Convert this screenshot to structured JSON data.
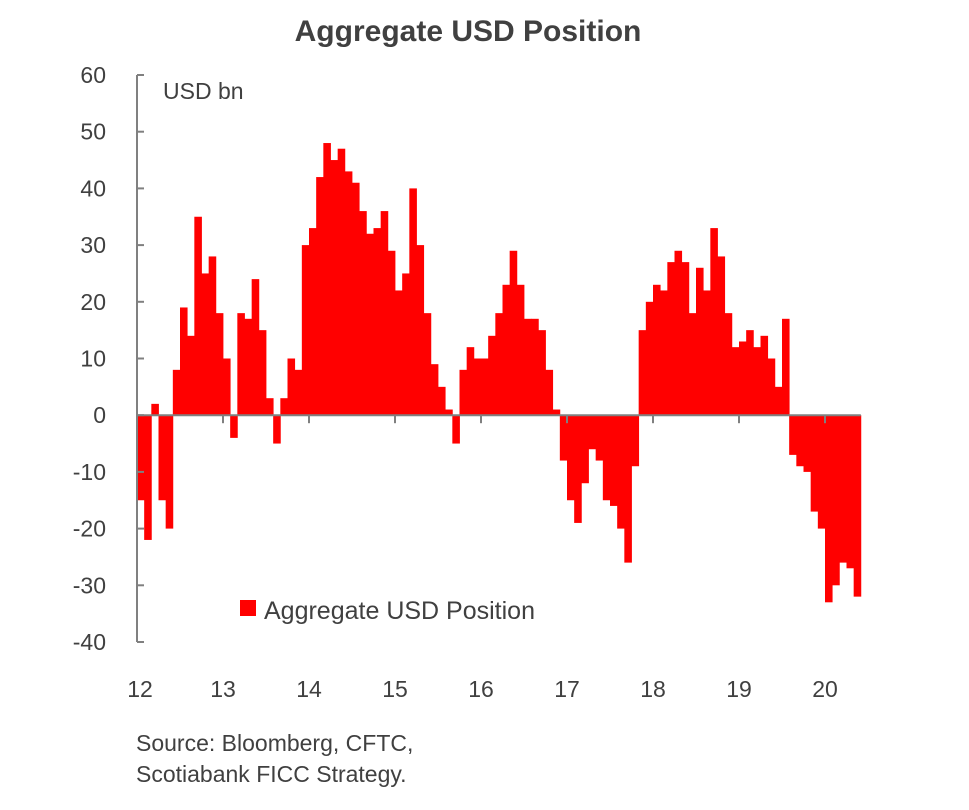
{
  "chart_data": {
    "type": "bar",
    "title": "Aggregate USD Position",
    "ylabel": "USD bn",
    "xlabel": "",
    "ylim": [
      -40,
      60
    ],
    "yticks": [
      "60",
      "50",
      "40",
      "30",
      "20",
      "10",
      "0",
      "-10",
      "-20",
      "-30",
      "-40"
    ],
    "xticks": [
      "12",
      "13",
      "14",
      "15",
      "16",
      "17",
      "18",
      "19",
      "20"
    ],
    "grid": false,
    "legend_position": "bottom-center",
    "colors": {
      "bar": "#FF0000",
      "axis": "#808080",
      "text": "#404040"
    },
    "x_start": "2012-01",
    "x_frequency": "monthly",
    "series": [
      {
        "name": "Aggregate USD Position",
        "values": [
          -15,
          -22,
          2,
          -15,
          -20,
          8,
          19,
          14,
          35,
          25,
          28,
          18,
          10,
          -4,
          18,
          17,
          24,
          15,
          3,
          -5,
          3,
          10,
          8,
          30,
          33,
          42,
          48,
          45,
          47,
          43,
          41,
          36,
          32,
          33,
          36,
          29,
          22,
          25,
          40,
          30,
          18,
          9,
          5,
          1,
          -5,
          8,
          12,
          10,
          10,
          14,
          18,
          23,
          29,
          23,
          17,
          17,
          15,
          8,
          1,
          -8,
          -15,
          -19,
          -12,
          -6,
          -8,
          -15,
          -16,
          -20,
          -26,
          -9,
          15,
          20,
          23,
          22,
          27,
          29,
          27,
          18,
          26,
          22,
          33,
          28,
          18,
          12,
          13,
          15,
          12,
          14,
          10,
          5,
          17,
          -7,
          -9,
          -10,
          -17,
          -20,
          -33,
          -30,
          -26,
          -27,
          -32
        ]
      }
    ],
    "source": [
      "Source: Bloomberg, CFTC,",
      "Scotiabank FICC  Strategy."
    ]
  }
}
